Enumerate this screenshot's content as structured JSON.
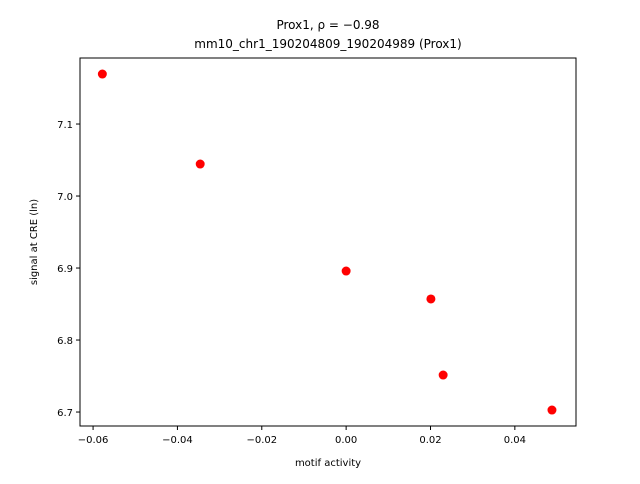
{
  "chart_data": {
    "type": "scatter",
    "title": "Prox1, ρ = −0.98",
    "subtitle": "mm10_chr1_190204809_190204989 (Prox1)",
    "x_label": "motif activity",
    "y_label": "signal at CRE (ln)",
    "color": "#ff0000",
    "x": [
      -0.0578,
      -0.0346,
      0.0,
      0.0201,
      0.023,
      0.0488
    ],
    "y": [
      7.1694,
      7.0444,
      6.8958,
      6.857,
      6.7514,
      6.7028
    ],
    "xlim": [
      -0.0631,
      0.0545
    ],
    "ylim": [
      6.6806,
      7.1917
    ],
    "xticks": [
      {
        "value": -0.06,
        "label": "−0.06"
      },
      {
        "value": -0.04,
        "label": "−0.04"
      },
      {
        "value": -0.02,
        "label": "−0.02"
      },
      {
        "value": 0,
        "label": "0.00"
      },
      0.02,
      0.04
    ],
    "yticks": [
      6.7,
      6.8,
      6.9,
      {
        "value": 7.0,
        "label": "7.0"
      },
      7.1
    ],
    "grid": false
  }
}
